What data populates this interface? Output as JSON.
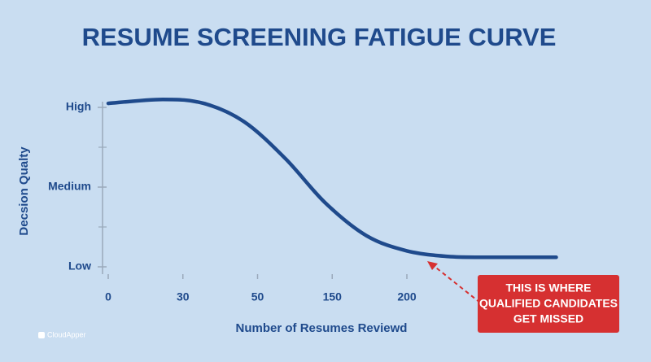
{
  "chart_data": {
    "type": "line",
    "title": "RESUME SCREENING FATIGUE CURVE",
    "x_label": "Number of Resumes Reviewd",
    "y_label": "Decsion Qualty",
    "xlim": [
      0,
      6
    ],
    "xticks": [
      {
        "value": 0,
        "label": "0"
      },
      {
        "value": 1,
        "label": "30"
      },
      {
        "value": 2,
        "label": "50"
      },
      {
        "value": 3,
        "label": "150"
      },
      {
        "value": 4,
        "label": "200"
      }
    ],
    "ylim": [
      0,
      2.1
    ],
    "yticks": [
      {
        "value": 0,
        "label": "Low"
      },
      {
        "value": 1,
        "label": "Medium"
      },
      {
        "value": 2,
        "label": "High"
      }
    ],
    "series": [
      {
        "color": "#1f4a8c",
        "x": [
          0,
          0.73,
          1.28,
          1.82,
          2.37,
          2.91,
          3.46,
          4.0,
          4.55,
          5.09,
          6.0
        ],
        "values": [
          2.05,
          2.1,
          2.05,
          1.82,
          1.36,
          0.8,
          0.39,
          0.2,
          0.13,
          0.12,
          0.12
        ]
      }
    ],
    "annotation": {
      "lines": [
        "THIS IS WHERE",
        "QUALIFIED CANDIDATES",
        "GET MISSED"
      ],
      "color": "#d63031"
    },
    "watermark": "CloudApper"
  }
}
